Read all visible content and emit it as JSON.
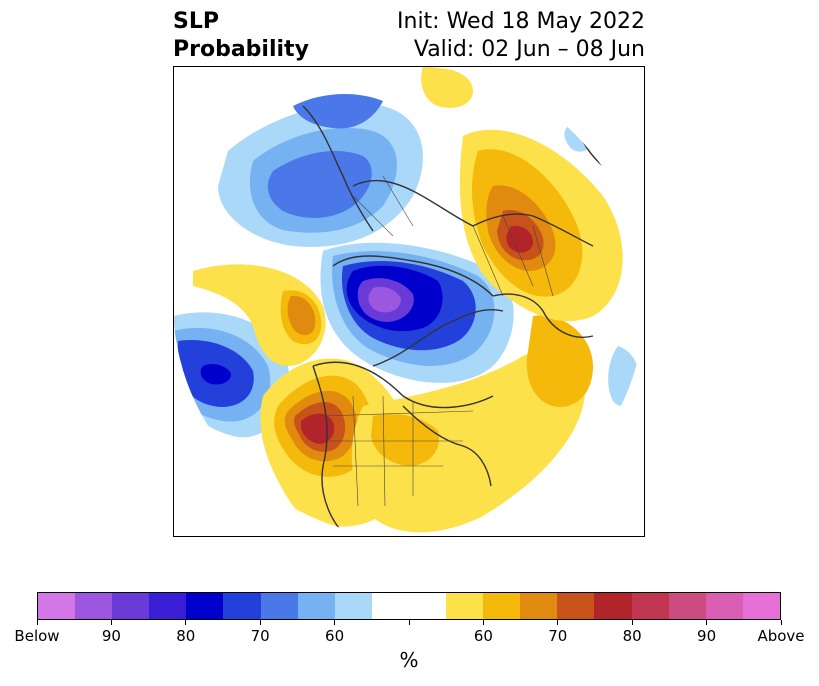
{
  "title": {
    "left_line1": "SLP",
    "left_line2": "Probability",
    "right_line1": "Init: Wed 18 May 2022",
    "right_line2": "Valid: 02 Jun – 08 Jun"
  },
  "colorbar": {
    "colors": [
      "#d376e8",
      "#9b57e0",
      "#6a3ad8",
      "#3a1ed6",
      "#0000cd",
      "#2341da",
      "#4a78e8",
      "#76b2f2",
      "#aad8f8",
      "#ffffff",
      "#ffffff",
      "#fde14a",
      "#f4b90b",
      "#e08a10",
      "#c8531a",
      "#b0242a",
      "#c0354f",
      "#cc4b80",
      "#da5fb2",
      "#e670d8"
    ],
    "labels": [
      "Below",
      "90",
      "80",
      "70",
      "60",
      "60",
      "70",
      "80",
      "90",
      "Above"
    ],
    "unit": "%"
  }
}
